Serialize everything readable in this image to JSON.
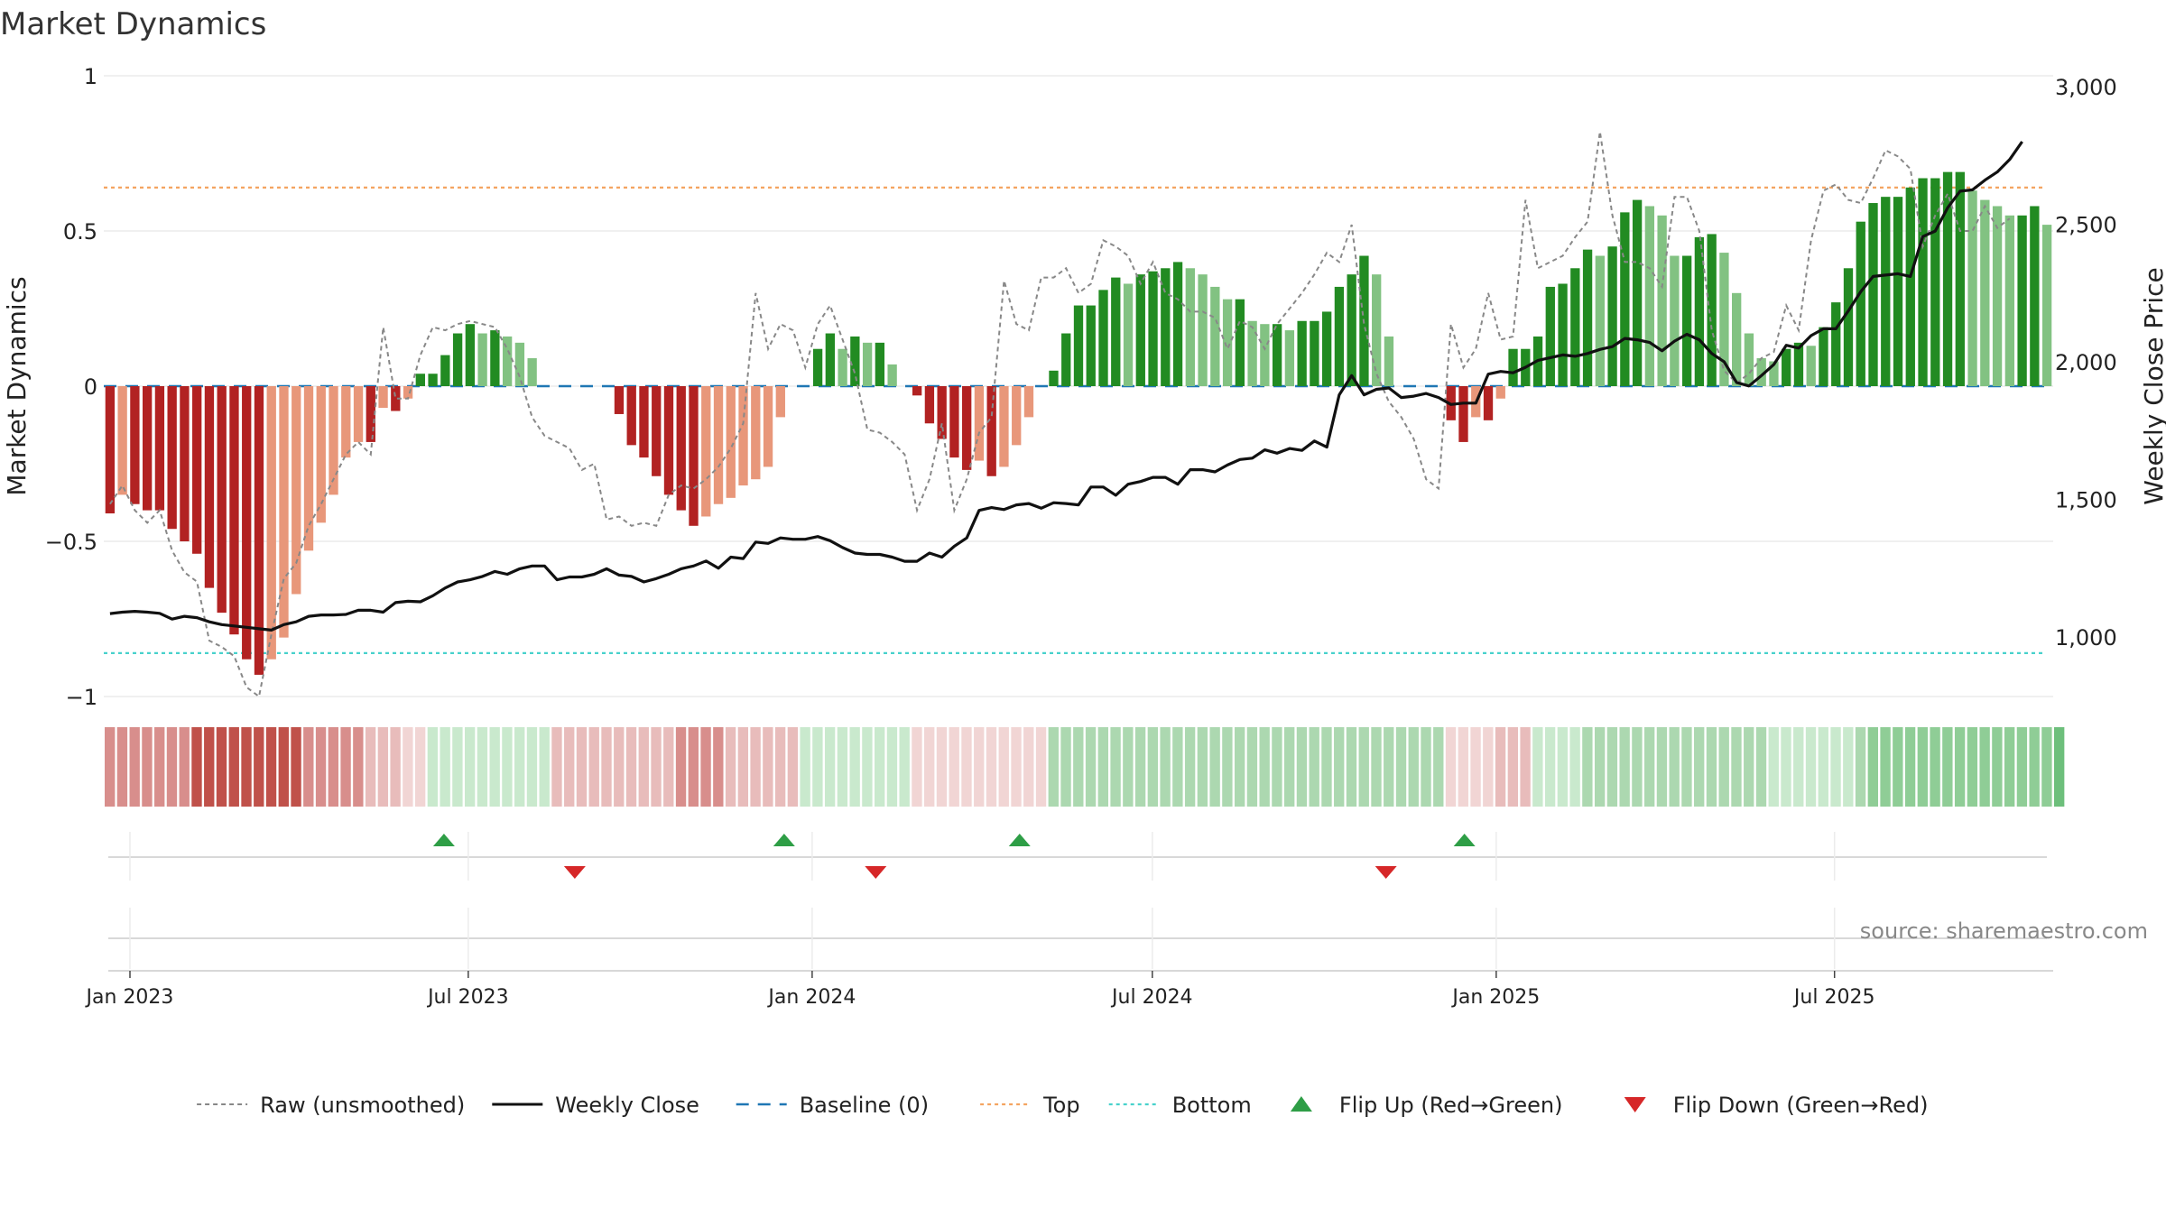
{
  "chart_data": {
    "type": "bar",
    "title": "Market Dynamics",
    "ylabel": "Market Dynamics",
    "y2label": "Weekly Close Price",
    "ylim": [
      -1,
      1
    ],
    "y2lim": [
      750,
      3000
    ],
    "source": "source: sharemaestro.com",
    "yticks": [
      {
        "v": 1,
        "label": "1"
      },
      {
        "v": 0.5,
        "label": "0.5"
      },
      {
        "v": 0,
        "label": "0"
      },
      {
        "v": -0.5,
        "label": "−0.5"
      },
      {
        "v": -1,
        "label": "−1"
      }
    ],
    "y2ticks": [
      {
        "v": 3000,
        "label": "3,000"
      },
      {
        "v": 2500,
        "label": "2,500"
      },
      {
        "v": 2000,
        "label": "2,000"
      },
      {
        "v": 1500,
        "label": "1,500"
      },
      {
        "v": 1000,
        "label": "1,000"
      }
    ],
    "xticks": [
      {
        "date": "2023-01-01",
        "label": "Jan 2023"
      },
      {
        "date": "2023-07-01",
        "label": "Jul 2023"
      },
      {
        "date": "2024-01-01",
        "label": "Jan 2024"
      },
      {
        "date": "2024-07-01",
        "label": "Jul 2024"
      },
      {
        "date": "2025-01-01",
        "label": "Jan 2025"
      },
      {
        "date": "2025-07-01",
        "label": "Jul 2025"
      }
    ],
    "start_date": "2022-12-18",
    "end_date": "2025-10-26",
    "thresholds": {
      "top": 0.64,
      "bottom": -0.86,
      "baseline": 0
    },
    "smoothed": [
      -0.41,
      -0.35,
      -0.38,
      -0.4,
      -0.4,
      -0.46,
      -0.5,
      -0.54,
      -0.65,
      -0.73,
      -0.8,
      -0.88,
      -0.93,
      -0.88,
      -0.81,
      -0.67,
      -0.53,
      -0.44,
      -0.35,
      -0.23,
      -0.18,
      -0.18,
      -0.07,
      -0.08,
      -0.04,
      0.04,
      0.04,
      0.1,
      0.17,
      0.2,
      0.17,
      0.18,
      0.16,
      0.14,
      0.09,
      0,
      0,
      0,
      0,
      0,
      0,
      -0.09,
      -0.19,
      -0.23,
      -0.29,
      -0.35,
      -0.4,
      -0.45,
      -0.42,
      -0.38,
      -0.36,
      -0.32,
      -0.3,
      -0.26,
      -0.1,
      0,
      0,
      0.12,
      0.17,
      0.12,
      0.16,
      0.14,
      0.14,
      0.07,
      0,
      -0.03,
      -0.12,
      -0.17,
      -0.23,
      -0.27,
      -0.24,
      -0.29,
      -0.26,
      -0.19,
      -0.1,
      0,
      0.05,
      0.17,
      0.26,
      0.26,
      0.31,
      0.35,
      0.33,
      0.36,
      0.37,
      0.38,
      0.4,
      0.38,
      0.36,
      0.32,
      0.28,
      0.28,
      0.21,
      0.2,
      0.2,
      0.18,
      0.21,
      0.21,
      0.24,
      0.32,
      0.36,
      0.42,
      0.36,
      0.16,
      0,
      0,
      0,
      0,
      -0.11,
      -0.18,
      -0.1,
      -0.11,
      -0.04,
      0.12,
      0.12,
      0.16,
      0.32,
      0.33,
      0.38,
      0.44,
      0.42,
      0.45,
      0.56,
      0.6,
      0.58,
      0.55,
      0.42,
      0.42,
      0.48,
      0.49,
      0.43,
      0.3,
      0.17,
      0.09,
      0.08,
      0.12,
      0.14,
      0.13,
      0.19,
      0.27,
      0.38,
      0.53,
      0.59,
      0.61,
      0.61,
      0.64,
      0.67,
      0.67,
      0.69,
      0.69,
      0.63,
      0.6,
      0.58,
      0.55,
      0.55,
      0.58,
      0.52
    ],
    "raw": [
      -0.38,
      -0.32,
      -0.4,
      -0.44,
      -0.4,
      -0.53,
      -0.6,
      -0.63,
      -0.82,
      -0.84,
      -0.87,
      -0.97,
      -1.0,
      -0.8,
      -0.62,
      -0.57,
      -0.45,
      -0.38,
      -0.3,
      -0.22,
      -0.18,
      -0.22,
      0.19,
      -0.04,
      -0.04,
      0.1,
      0.19,
      0.18,
      0.2,
      0.21,
      0.2,
      0.19,
      0.12,
      0.03,
      -0.1,
      -0.16,
      -0.18,
      -0.2,
      -0.27,
      -0.25,
      -0.43,
      -0.42,
      -0.45,
      -0.44,
      -0.45,
      -0.35,
      -0.32,
      -0.33,
      -0.3,
      -0.26,
      -0.2,
      -0.12,
      0.3,
      0.12,
      0.2,
      0.18,
      0.06,
      0.2,
      0.26,
      0.15,
      0.04,
      -0.14,
      -0.15,
      -0.18,
      -0.22,
      -0.4,
      -0.3,
      -0.12,
      -0.4,
      -0.3,
      -0.15,
      -0.1,
      0.34,
      0.2,
      0.18,
      0.35,
      0.35,
      0.38,
      0.3,
      0.33,
      0.47,
      0.45,
      0.42,
      0.33,
      0.4,
      0.3,
      0.28,
      0.24,
      0.24,
      0.22,
      0.12,
      0.21,
      0.19,
      0.12,
      0.2,
      0.25,
      0.3,
      0.36,
      0.43,
      0.4,
      0.52,
      0.2,
      0.04,
      -0.05,
      -0.1,
      -0.17,
      -0.3,
      -0.33,
      0.2,
      0.06,
      0.12,
      0.3,
      0.15,
      0.16,
      0.6,
      0.38,
      0.4,
      0.42,
      0.48,
      0.53,
      0.82,
      0.55,
      0.4,
      0.4,
      0.38,
      0.32,
      0.61,
      0.61,
      0.5,
      0.18,
      0.05,
      0.01,
      0.04,
      0.09,
      0.11,
      0.26,
      0.18,
      0.47,
      0.63,
      0.65,
      0.6,
      0.59,
      0.67,
      0.76,
      0.74,
      0.7,
      0.45,
      0.55,
      0.62,
      0.5,
      0.5,
      0.58,
      0.51,
      0.54
    ],
    "close": [
      1085,
      1090,
      1093,
      1090,
      1086,
      1065,
      1075,
      1070,
      1055,
      1045,
      1040,
      1035,
      1030,
      1025,
      1045,
      1055,
      1075,
      1080,
      1080,
      1082,
      1097,
      1097,
      1090,
      1125,
      1130,
      1128,
      1150,
      1178,
      1200,
      1208,
      1220,
      1238,
      1228,
      1248,
      1258,
      1258,
      1208,
      1218,
      1218,
      1228,
      1248,
      1225,
      1220,
      1200,
      1212,
      1228,
      1248,
      1258,
      1276,
      1250,
      1290,
      1285,
      1345,
      1340,
      1360,
      1355,
      1355,
      1365,
      1350,
      1325,
      1305,
      1300,
      1300,
      1290,
      1275,
      1275,
      1305,
      1290,
      1330,
      1360,
      1460,
      1470,
      1463,
      1480,
      1485,
      1468,
      1488,
      1485,
      1480,
      1545,
      1545,
      1515,
      1555,
      1565,
      1580,
      1580,
      1555,
      1608,
      1608,
      1600,
      1625,
      1645,
      1650,
      1680,
      1668,
      1685,
      1678,
      1712,
      1690,
      1880,
      1950,
      1880,
      1900,
      1905,
      1870,
      1875,
      1885,
      1870,
      1845,
      1850,
      1850,
      1955,
      1965,
      1960,
      1980,
      2005,
      2015,
      2025,
      2020,
      2030,
      2045,
      2055,
      2085,
      2080,
      2070,
      2040,
      2075,
      2100,
      2080,
      2030,
      2000,
      1925,
      1912,
      1950,
      1990,
      2060,
      2050,
      2095,
      2120,
      2120,
      2185,
      2255,
      2310,
      2315,
      2320,
      2310,
      2455,
      2475,
      2560,
      2620,
      2625,
      2660,
      2690,
      2735,
      2800
    ],
    "regime_colors": {
      "1": "#c0514a",
      "2": "#d88e8c",
      "3": "#e8bcbb",
      "4": "#f1d5d4",
      "5": "#c9e9cd",
      "6": "#acd8b0",
      "7": "#8fcd96",
      "8": "#6dbf7b"
    },
    "regime": [
      2,
      2,
      2,
      2,
      2,
      2,
      2,
      1,
      1,
      1,
      1,
      1,
      1,
      1,
      1,
      1,
      2,
      2,
      2,
      2,
      2,
      3,
      3,
      3,
      4,
      4,
      5,
      5,
      5,
      5,
      5,
      5,
      5,
      5,
      5,
      5,
      3,
      3,
      3,
      3,
      3,
      3,
      3,
      3,
      3,
      3,
      2,
      2,
      2,
      2,
      3,
      3,
      3,
      3,
      3,
      3,
      5,
      5,
      5,
      5,
      5,
      5,
      5,
      5,
      5,
      4,
      4,
      4,
      4,
      4,
      4,
      4,
      4,
      4,
      4,
      4,
      6,
      6,
      6,
      6,
      6,
      6,
      6,
      6,
      6,
      6,
      6,
      6,
      6,
      6,
      6,
      6,
      6,
      6,
      6,
      6,
      6,
      6,
      6,
      6,
      6,
      6,
      6,
      6,
      6,
      6,
      6,
      6,
      4,
      4,
      4,
      4,
      3,
      3,
      3,
      5,
      5,
      5,
      5,
      6,
      6,
      6,
      6,
      6,
      6,
      6,
      6,
      6,
      6,
      6,
      6,
      6,
      6,
      6,
      5,
      5,
      5,
      5,
      5,
      5,
      5,
      6,
      7,
      7,
      7,
      7,
      7,
      7,
      7,
      7,
      7,
      7,
      7,
      7,
      7,
      7,
      7,
      8
    ],
    "flips": [
      {
        "date": "2023-06-18",
        "type": "up"
      },
      {
        "date": "2023-08-27",
        "type": "down"
      },
      {
        "date": "2023-12-17",
        "type": "up"
      },
      {
        "date": "2024-02-04",
        "type": "down"
      },
      {
        "date": "2024-04-21",
        "type": "up"
      },
      {
        "date": "2024-11-03",
        "type": "down"
      },
      {
        "date": "2024-12-15",
        "type": "up"
      }
    ],
    "colors": {
      "neg_strong": "#b22222",
      "neg_weak": "#e8977a",
      "pos_strong": "#228b22",
      "pos_weak": "#82c282",
      "raw": "#888888",
      "close": "#111111",
      "baseline": "#1f77b4",
      "top": "#f4a460",
      "bottom": "#48d1cc",
      "flip_up": "#2e9e46",
      "flip_down": "#d62728"
    },
    "legend": {
      "placement": "bottom-center",
      "items": [
        {
          "key": "raw",
          "label": "Raw (unsmoothed)",
          "style": "dashed-gray"
        },
        {
          "key": "close",
          "label": "Weekly Close",
          "style": "solid-black"
        },
        {
          "key": "baseline",
          "label": "Baseline (0)",
          "style": "dashed-blue"
        },
        {
          "key": "top",
          "label": "Top",
          "style": "dotted-orange"
        },
        {
          "key": "bottom",
          "label": "Bottom",
          "style": "dotted-cyan"
        },
        {
          "key": "flip_up",
          "label": "Flip Up (Red→Green)",
          "style": "triangle-up"
        },
        {
          "key": "flip_down",
          "label": "Flip Down (Green→Red)",
          "style": "triangle-down"
        }
      ]
    }
  }
}
